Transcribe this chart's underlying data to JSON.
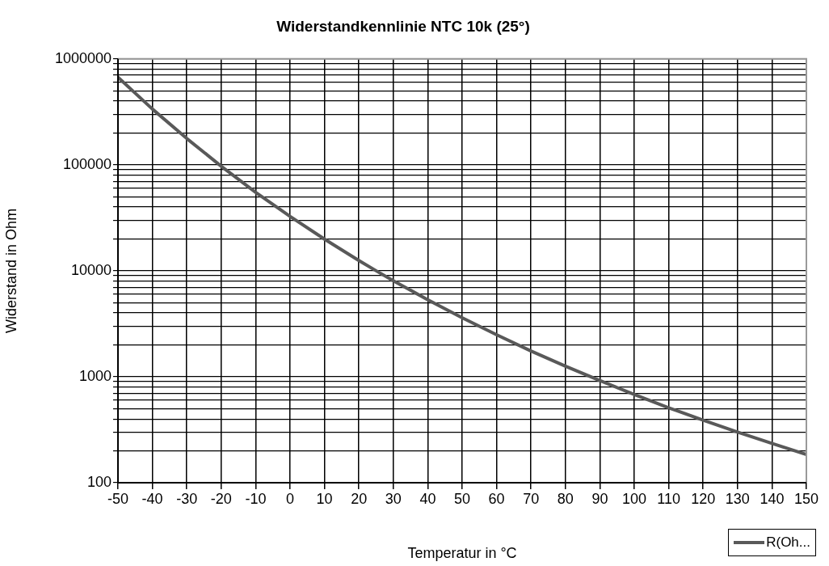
{
  "chart_data": {
    "type": "line",
    "title": "Widerstandkennlinie NTC 10k (25°)",
    "xlabel": "Temperatur in °C",
    "ylabel": "Widerstand in Ohm",
    "x": [
      -50,
      -40,
      -30,
      -20,
      -10,
      0,
      10,
      20,
      25,
      30,
      40,
      50,
      60,
      70,
      80,
      90,
      100,
      110,
      120,
      130,
      140,
      150
    ],
    "series": [
      {
        "name": "R(Oh...",
        "color": "#595959",
        "values": [
          670000,
          336000,
          177000,
          97000,
          55000,
          32600,
          19900,
          12500,
          10000,
          8060,
          5330,
          3600,
          2490,
          1750,
          1260,
          920,
          680,
          510,
          390,
          300,
          235,
          185
        ]
      }
    ],
    "log": "y",
    "xlim": [
      -50,
      150
    ],
    "xticks": [
      -50,
      -40,
      -30,
      -20,
      -10,
      0,
      10,
      20,
      30,
      40,
      50,
      60,
      70,
      80,
      90,
      100,
      110,
      120,
      130,
      140,
      150
    ],
    "ylim": [
      100,
      1000000
    ],
    "yticks": [
      100,
      {
        "value": 200,
        "label": null
      },
      {
        "value": 300,
        "label": null
      },
      {
        "value": 400,
        "label": null
      },
      {
        "value": 500,
        "label": null
      },
      {
        "value": 600,
        "label": null
      },
      {
        "value": 700,
        "label": null
      },
      {
        "value": 800,
        "label": null
      },
      {
        "value": 900,
        "label": null
      },
      1000,
      {
        "value": 2000,
        "label": null
      },
      {
        "value": 3000,
        "label": null
      },
      {
        "value": 4000,
        "label": null
      },
      {
        "value": 5000,
        "label": null
      },
      {
        "value": 6000,
        "label": null
      },
      {
        "value": 7000,
        "label": null
      },
      {
        "value": 8000,
        "label": null
      },
      {
        "value": 9000,
        "label": null
      },
      10000,
      {
        "value": 20000,
        "label": null
      },
      {
        "value": 30000,
        "label": null
      },
      {
        "value": 40000,
        "label": null
      },
      {
        "value": 50000,
        "label": null
      },
      {
        "value": 60000,
        "label": null
      },
      {
        "value": 70000,
        "label": null
      },
      {
        "value": 80000,
        "label": null
      },
      {
        "value": 90000,
        "label": null
      },
      100000,
      {
        "value": 200000,
        "label": null
      },
      {
        "value": 300000,
        "label": null
      },
      {
        "value": 400000,
        "label": null
      },
      {
        "value": 500000,
        "label": null
      },
      {
        "value": 600000,
        "label": null
      },
      {
        "value": 700000,
        "label": null
      },
      {
        "value": 800000,
        "label": null
      },
      {
        "value": 900000,
        "label": null
      },
      1000000
    ],
    "grid": true,
    "legend": "bottom right",
    "marker": "none",
    "line_style": "solid"
  }
}
